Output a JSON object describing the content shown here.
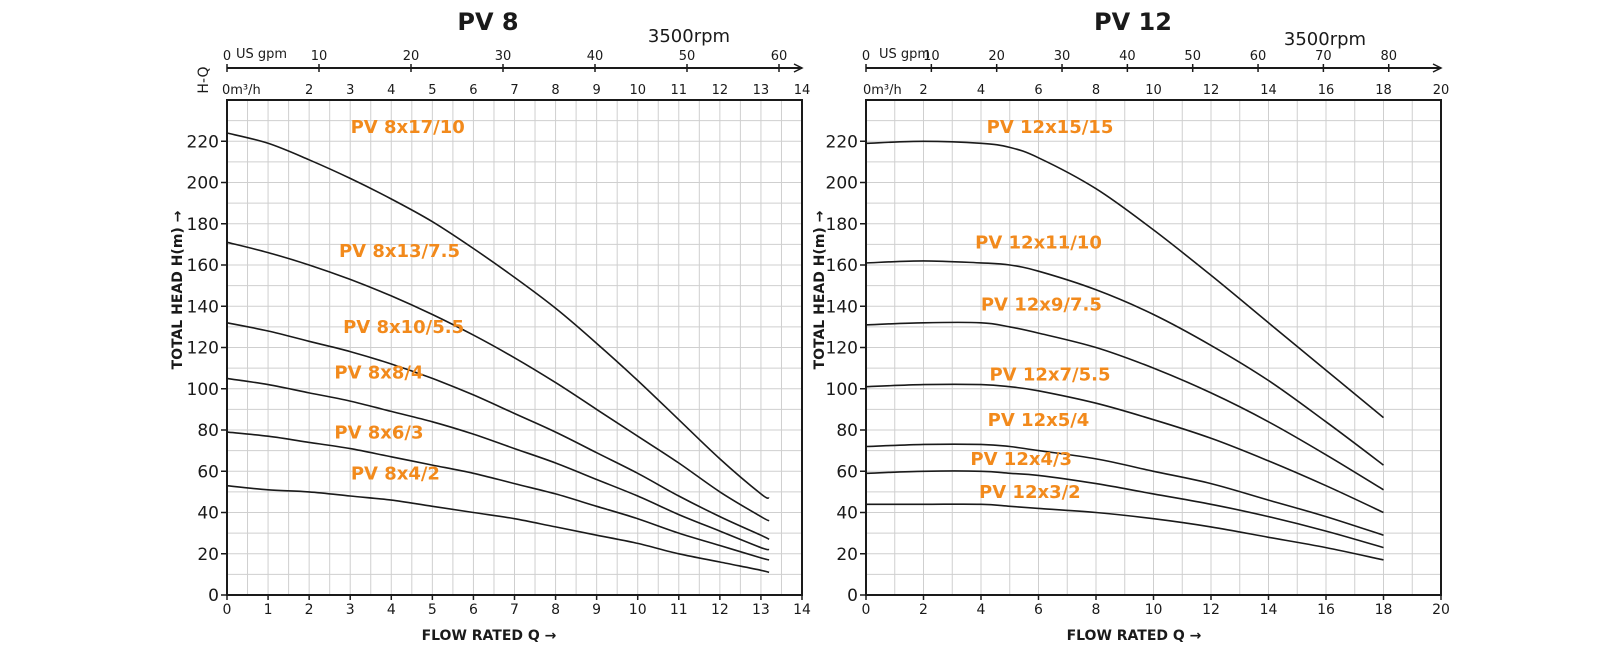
{
  "theme": {
    "label_color": "#f28a1c",
    "line_color": "#1a1a1a"
  },
  "vertical_label": "H-Q",
  "chart_data": [
    {
      "type": "line",
      "title": "PV 8",
      "rpm_label": "3500rpm",
      "xlabel": "FLOW RATED Q →",
      "ylabel": "TOTAL HEAD H(m) →",
      "xlim": [
        0,
        14
      ],
      "ylim": [
        0,
        240
      ],
      "grid": true,
      "x_ticks": [
        0,
        1,
        2,
        3,
        4,
        5,
        6,
        7,
        8,
        9,
        10,
        11,
        12,
        13,
        14
      ],
      "y_ticks": [
        0,
        20,
        40,
        60,
        80,
        100,
        120,
        140,
        160,
        180,
        200,
        220
      ],
      "top_m3h_unit": "0m³/h",
      "top_m3h_ticks": [
        2,
        3,
        4,
        5,
        6,
        7,
        8,
        9,
        10,
        11,
        12,
        13,
        14
      ],
      "top_gpm_unit": "US gpm",
      "top_gpm_ticks": [
        0,
        10,
        20,
        30,
        40,
        50,
        60
      ],
      "series": [
        {
          "name": "PV 8x17/10",
          "label_x": 4.4,
          "label_y": 224,
          "x": [
            0,
            1,
            2,
            3,
            4,
            5,
            6,
            7,
            8,
            9,
            10,
            11,
            12,
            13,
            13.2
          ],
          "y": [
            224,
            219,
            211,
            202,
            192,
            181,
            168,
            154,
            139,
            122,
            104,
            85,
            66,
            49,
            47
          ]
        },
        {
          "name": "PV 8x13/7.5",
          "label_x": 4.2,
          "label_y": 164,
          "x": [
            0,
            1,
            2,
            3,
            4,
            5,
            6,
            7,
            8,
            9,
            10,
            11,
            12,
            13,
            13.2
          ],
          "y": [
            171,
            166,
            160,
            153,
            145,
            136,
            126,
            115,
            103,
            90,
            77,
            64,
            50,
            38,
            36
          ]
        },
        {
          "name": "PV 8x10/5.5",
          "label_x": 4.3,
          "label_y": 127,
          "x": [
            0,
            1,
            2,
            3,
            4,
            5,
            6,
            7,
            8,
            9,
            10,
            11,
            12,
            13,
            13.2
          ],
          "y": [
            132,
            128,
            123,
            118,
            112,
            105,
            97,
            88,
            79,
            69,
            59,
            48,
            38,
            29,
            27
          ]
        },
        {
          "name": "PV 8x8/4",
          "label_x": 3.7,
          "label_y": 105,
          "x": [
            0,
            1,
            2,
            3,
            4,
            5,
            6,
            7,
            8,
            9,
            10,
            11,
            12,
            13,
            13.2
          ],
          "y": [
            105,
            102,
            98,
            94,
            89,
            84,
            78,
            71,
            64,
            56,
            48,
            39,
            31,
            23,
            22
          ]
        },
        {
          "name": "PV 8x6/3",
          "label_x": 3.7,
          "label_y": 76,
          "x": [
            0,
            1,
            2,
            3,
            4,
            5,
            6,
            7,
            8,
            9,
            10,
            11,
            12,
            13,
            13.2
          ],
          "y": [
            79,
            77,
            74,
            71,
            67,
            63,
            59,
            54,
            49,
            43,
            37,
            30,
            24,
            18,
            17
          ]
        },
        {
          "name": "PV 8x4/2",
          "label_x": 4.1,
          "label_y": 56,
          "x": [
            0,
            1,
            2,
            3,
            4,
            5,
            6,
            7,
            8,
            9,
            10,
            11,
            12,
            13,
            13.2
          ],
          "y": [
            53,
            51,
            50,
            48,
            46,
            43,
            40,
            37,
            33,
            29,
            25,
            20,
            16,
            12,
            11
          ]
        }
      ]
    },
    {
      "type": "line",
      "title": "PV 12",
      "rpm_label": "3500rpm",
      "xlabel": "FLOW RATED Q →",
      "ylabel": "TOTAL HEAD H(m) →",
      "xlim": [
        0,
        20
      ],
      "ylim": [
        0,
        240
      ],
      "grid": true,
      "x_ticks": [
        0,
        2,
        4,
        6,
        8,
        10,
        12,
        14,
        16,
        18,
        20
      ],
      "y_ticks": [
        0,
        20,
        40,
        60,
        80,
        100,
        120,
        140,
        160,
        180,
        200,
        220
      ],
      "top_m3h_unit": "0m³/h",
      "top_m3h_ticks": [
        2,
        4,
        6,
        8,
        10,
        12,
        14,
        16,
        18,
        20
      ],
      "top_gpm_unit": "US gpm",
      "top_gpm_ticks": [
        0,
        10,
        20,
        30,
        40,
        50,
        60,
        70,
        80
      ],
      "series": [
        {
          "name": "PV 12x15/15",
          "label_x": 6.4,
          "label_y": 224,
          "x": [
            0,
            2,
            4,
            5,
            6,
            8,
            10,
            12,
            14,
            16,
            18
          ],
          "y": [
            219,
            220,
            219,
            217,
            212,
            197,
            177,
            155,
            132,
            109,
            86
          ]
        },
        {
          "name": "PV 12x11/10",
          "label_x": 6.0,
          "label_y": 168,
          "x": [
            0,
            2,
            4,
            5,
            6,
            8,
            10,
            12,
            14,
            16,
            18
          ],
          "y": [
            161,
            162,
            161,
            160,
            157,
            148,
            136,
            121,
            104,
            84,
            63
          ]
        },
        {
          "name": "PV 12x9/7.5",
          "label_x": 6.1,
          "label_y": 138,
          "x": [
            0,
            2,
            4,
            5,
            6,
            8,
            10,
            12,
            14,
            16,
            18
          ],
          "y": [
            131,
            132,
            132,
            130,
            127,
            120,
            110,
            98,
            84,
            68,
            51
          ]
        },
        {
          "name": "PV 12x7/5.5",
          "label_x": 6.4,
          "label_y": 104,
          "x": [
            0,
            2,
            4,
            5,
            6,
            8,
            10,
            12,
            14,
            16,
            18
          ],
          "y": [
            101,
            102,
            102,
            101,
            99,
            93,
            85,
            76,
            65,
            53,
            40
          ]
        },
        {
          "name": "PV 12x5/4",
          "label_x": 6.0,
          "label_y": 82,
          "x": [
            0,
            2,
            4,
            5,
            6,
            8,
            10,
            12,
            14,
            16,
            18
          ],
          "y": [
            72,
            73,
            73,
            72,
            70,
            66,
            60,
            54,
            46,
            38,
            29
          ]
        },
        {
          "name": "PV 12x4/3",
          "label_x": 5.4,
          "label_y": 63,
          "x": [
            0,
            2,
            4,
            5,
            6,
            8,
            10,
            12,
            14,
            16,
            18
          ],
          "y": [
            59,
            60,
            60,
            59,
            58,
            54,
            49,
            44,
            38,
            31,
            23
          ]
        },
        {
          "name": "PV 12x3/2",
          "label_x": 5.7,
          "label_y": 47,
          "x": [
            0,
            2,
            4,
            5,
            6,
            8,
            10,
            12,
            14,
            16,
            18
          ],
          "y": [
            44,
            44,
            44,
            43,
            42,
            40,
            37,
            33,
            28,
            23,
            17
          ]
        }
      ]
    }
  ]
}
